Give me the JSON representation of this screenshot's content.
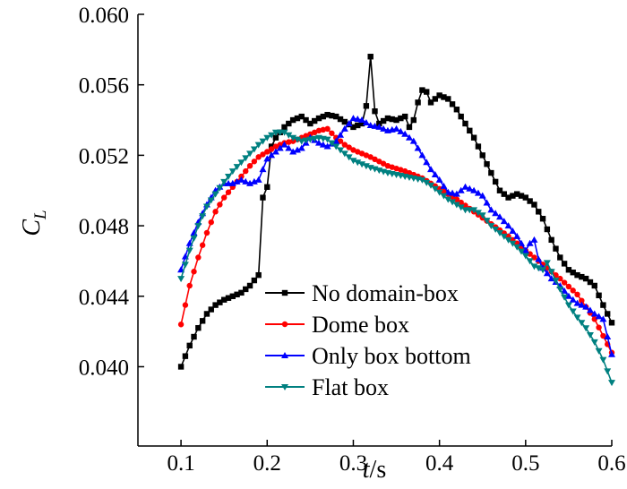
{
  "chart_data": {
    "type": "line",
    "title": "",
    "xlabel": {
      "main": "t",
      "unit": "/s"
    },
    "ylabel": {
      "main": "C",
      "sub": "L"
    },
    "xlim": [
      0.05,
      0.6
    ],
    "ylim": [
      0.0355,
      0.06
    ],
    "xticks": [
      0.1,
      0.2,
      0.3,
      0.4,
      0.5,
      0.6
    ],
    "xtick_labels": [
      "0.1",
      "0.2",
      "0.3",
      "0.4",
      "0.5",
      "0.6"
    ],
    "yticks": [
      0.04,
      0.044,
      0.048,
      0.052,
      0.056,
      0.06
    ],
    "ytick_labels": [
      "0.040",
      "0.044",
      "0.048",
      "0.052",
      "0.056",
      "0.060"
    ],
    "grid": false,
    "legend_position": "lower-center",
    "series": [
      {
        "name": "No domain-box",
        "color": "#000000",
        "marker": "square",
        "points": [
          [
            0.1,
            0.04
          ],
          [
            0.11,
            0.0412
          ],
          [
            0.12,
            0.0422
          ],
          [
            0.13,
            0.043
          ],
          [
            0.14,
            0.0435
          ],
          [
            0.15,
            0.0438
          ],
          [
            0.16,
            0.044
          ],
          [
            0.17,
            0.0442
          ],
          [
            0.18,
            0.0446
          ],
          [
            0.19,
            0.0452
          ],
          [
            0.195,
            0.0496
          ],
          [
            0.2,
            0.0502
          ],
          [
            0.205,
            0.0525
          ],
          [
            0.21,
            0.053
          ],
          [
            0.22,
            0.0536
          ],
          [
            0.23,
            0.054
          ],
          [
            0.24,
            0.0542
          ],
          [
            0.25,
            0.0538
          ],
          [
            0.26,
            0.0541
          ],
          [
            0.27,
            0.0543
          ],
          [
            0.28,
            0.0542
          ],
          [
            0.29,
            0.0539
          ],
          [
            0.3,
            0.0536
          ],
          [
            0.31,
            0.0538
          ],
          [
            0.315,
            0.0548
          ],
          [
            0.32,
            0.0576
          ],
          [
            0.325,
            0.0545
          ],
          [
            0.33,
            0.0538
          ],
          [
            0.34,
            0.0541
          ],
          [
            0.35,
            0.054
          ],
          [
            0.36,
            0.0542
          ],
          [
            0.365,
            0.0536
          ],
          [
            0.37,
            0.054
          ],
          [
            0.375,
            0.055
          ],
          [
            0.38,
            0.0557
          ],
          [
            0.385,
            0.0556
          ],
          [
            0.39,
            0.055
          ],
          [
            0.4,
            0.0554
          ],
          [
            0.41,
            0.0552
          ],
          [
            0.42,
            0.0546
          ],
          [
            0.43,
            0.0538
          ],
          [
            0.44,
            0.053
          ],
          [
            0.45,
            0.052
          ],
          [
            0.46,
            0.051
          ],
          [
            0.47,
            0.05
          ],
          [
            0.48,
            0.0496
          ],
          [
            0.49,
            0.0498
          ],
          [
            0.5,
            0.0496
          ],
          [
            0.51,
            0.0492
          ],
          [
            0.52,
            0.0484
          ],
          [
            0.53,
            0.0472
          ],
          [
            0.54,
            0.0462
          ],
          [
            0.55,
            0.0455
          ],
          [
            0.56,
            0.0452
          ],
          [
            0.57,
            0.045
          ],
          [
            0.58,
            0.0446
          ],
          [
            0.59,
            0.0435
          ],
          [
            0.6,
            0.0425
          ]
        ]
      },
      {
        "name": "Dome box",
        "color": "#ff0000",
        "marker": "circle",
        "points": [
          [
            0.1,
            0.0424
          ],
          [
            0.11,
            0.0446
          ],
          [
            0.12,
            0.0462
          ],
          [
            0.13,
            0.0476
          ],
          [
            0.14,
            0.0488
          ],
          [
            0.15,
            0.0496
          ],
          [
            0.16,
            0.0502
          ],
          [
            0.17,
            0.0508
          ],
          [
            0.18,
            0.0514
          ],
          [
            0.19,
            0.0519
          ],
          [
            0.2,
            0.0522
          ],
          [
            0.21,
            0.0525
          ],
          [
            0.22,
            0.0527
          ],
          [
            0.23,
            0.0528
          ],
          [
            0.24,
            0.053
          ],
          [
            0.25,
            0.0532
          ],
          [
            0.26,
            0.0534
          ],
          [
            0.27,
            0.0535
          ],
          [
            0.28,
            0.053
          ],
          [
            0.29,
            0.0526
          ],
          [
            0.3,
            0.0523
          ],
          [
            0.32,
            0.0519
          ],
          [
            0.34,
            0.0514
          ],
          [
            0.36,
            0.0511
          ],
          [
            0.38,
            0.0507
          ],
          [
            0.4,
            0.0501
          ],
          [
            0.42,
            0.0495
          ],
          [
            0.44,
            0.0488
          ],
          [
            0.46,
            0.0481
          ],
          [
            0.48,
            0.0474
          ],
          [
            0.5,
            0.0466
          ],
          [
            0.52,
            0.0458
          ],
          [
            0.54,
            0.045
          ],
          [
            0.56,
            0.0441
          ],
          [
            0.58,
            0.0427
          ],
          [
            0.6,
            0.0408
          ]
        ]
      },
      {
        "name": "Only box bottom",
        "color": "#0000ff",
        "marker": "triangle-up",
        "points": [
          [
            0.1,
            0.0455
          ],
          [
            0.11,
            0.047
          ],
          [
            0.12,
            0.0482
          ],
          [
            0.13,
            0.0492
          ],
          [
            0.14,
            0.05
          ],
          [
            0.15,
            0.0504
          ],
          [
            0.16,
            0.0504
          ],
          [
            0.17,
            0.0506
          ],
          [
            0.18,
            0.0504
          ],
          [
            0.19,
            0.0506
          ],
          [
            0.2,
            0.0518
          ],
          [
            0.21,
            0.0522
          ],
          [
            0.22,
            0.0526
          ],
          [
            0.23,
            0.0522
          ],
          [
            0.24,
            0.0524
          ],
          [
            0.25,
            0.053
          ],
          [
            0.26,
            0.0527
          ],
          [
            0.27,
            0.0525
          ],
          [
            0.28,
            0.0528
          ],
          [
            0.29,
            0.0535
          ],
          [
            0.3,
            0.0541
          ],
          [
            0.31,
            0.054
          ],
          [
            0.32,
            0.0537
          ],
          [
            0.33,
            0.0536
          ],
          [
            0.34,
            0.0534
          ],
          [
            0.35,
            0.0535
          ],
          [
            0.36,
            0.0532
          ],
          [
            0.37,
            0.0528
          ],
          [
            0.38,
            0.052
          ],
          [
            0.39,
            0.0512
          ],
          [
            0.4,
            0.0506
          ],
          [
            0.41,
            0.0499
          ],
          [
            0.42,
            0.0498
          ],
          [
            0.43,
            0.0502
          ],
          [
            0.44,
            0.05
          ],
          [
            0.45,
            0.0497
          ],
          [
            0.46,
            0.0489
          ],
          [
            0.47,
            0.0485
          ],
          [
            0.48,
            0.048
          ],
          [
            0.49,
            0.0474
          ],
          [
            0.5,
            0.0466
          ],
          [
            0.505,
            0.047
          ],
          [
            0.51,
            0.0472
          ],
          [
            0.515,
            0.0461
          ],
          [
            0.52,
            0.0456
          ],
          [
            0.53,
            0.045
          ],
          [
            0.54,
            0.0446
          ],
          [
            0.55,
            0.044
          ],
          [
            0.56,
            0.0436
          ],
          [
            0.57,
            0.0434
          ],
          [
            0.58,
            0.043
          ],
          [
            0.59,
            0.0427
          ],
          [
            0.6,
            0.0407
          ]
        ]
      },
      {
        "name": "Flat box",
        "color": "#008080",
        "marker": "triangle-down",
        "points": [
          [
            0.1,
            0.045
          ],
          [
            0.11,
            0.0466
          ],
          [
            0.12,
            0.048
          ],
          [
            0.13,
            0.0491
          ],
          [
            0.14,
            0.0498
          ],
          [
            0.15,
            0.0505
          ],
          [
            0.16,
            0.0511
          ],
          [
            0.17,
            0.0516
          ],
          [
            0.18,
            0.0521
          ],
          [
            0.19,
            0.0526
          ],
          [
            0.2,
            0.053
          ],
          [
            0.21,
            0.0533
          ],
          [
            0.22,
            0.0533
          ],
          [
            0.23,
            0.053
          ],
          [
            0.24,
            0.0528
          ],
          [
            0.25,
            0.0529
          ],
          [
            0.26,
            0.053
          ],
          [
            0.27,
            0.0529
          ],
          [
            0.28,
            0.0525
          ],
          [
            0.29,
            0.0521
          ],
          [
            0.3,
            0.0517
          ],
          [
            0.32,
            0.0513
          ],
          [
            0.34,
            0.051
          ],
          [
            0.36,
            0.0508
          ],
          [
            0.38,
            0.0506
          ],
          [
            0.39,
            0.0503
          ],
          [
            0.4,
            0.0499
          ],
          [
            0.41,
            0.0495
          ],
          [
            0.42,
            0.0492
          ],
          [
            0.43,
            0.0489
          ],
          [
            0.44,
            0.0489
          ],
          [
            0.45,
            0.0486
          ],
          [
            0.46,
            0.048
          ],
          [
            0.47,
            0.0476
          ],
          [
            0.48,
            0.0472
          ],
          [
            0.49,
            0.0468
          ],
          [
            0.5,
            0.0463
          ],
          [
            0.51,
            0.0457
          ],
          [
            0.52,
            0.0455
          ],
          [
            0.525,
            0.0459
          ],
          [
            0.53,
            0.0454
          ],
          [
            0.54,
            0.0444
          ],
          [
            0.55,
            0.0435
          ],
          [
            0.56,
            0.0428
          ],
          [
            0.57,
            0.0422
          ],
          [
            0.58,
            0.0414
          ],
          [
            0.59,
            0.0404
          ],
          [
            0.6,
            0.0391
          ]
        ]
      }
    ]
  }
}
